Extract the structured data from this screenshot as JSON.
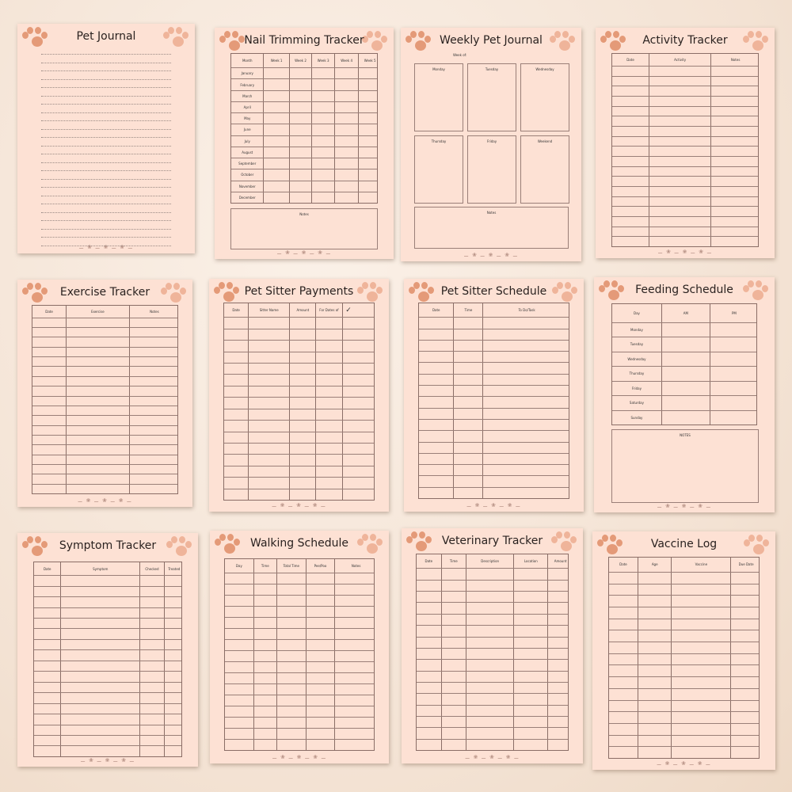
{
  "colors": {
    "page": "#fde1d4",
    "paw": "#e49a78",
    "grid": "#8a6d66"
  },
  "footer_icons": "bone-paw-bone-paw-bone",
  "pages": [
    {
      "title": "Pet Journal",
      "type": "lines"
    },
    {
      "title": "Nail Trimming Tracker",
      "type": "table",
      "columns": [
        "Month",
        "Week 1",
        "Week 2",
        "Week 3",
        "Week 4",
        "Week 5"
      ],
      "row_labels": [
        "January",
        "February",
        "March",
        "April",
        "May",
        "June",
        "July",
        "August",
        "September",
        "October",
        "November",
        "December"
      ],
      "notes": "Notes"
    },
    {
      "title": "Weekly Pet Journal",
      "type": "weekly",
      "week_of": "Week of:",
      "days": [
        "Monday",
        "Tuesday",
        "Wednesday",
        "Thursday",
        "Friday",
        "Weekend"
      ],
      "notes": "Notes"
    },
    {
      "title": "Activity Tracker",
      "type": "table",
      "columns": [
        "Date",
        "Activity",
        "Notes"
      ]
    },
    {
      "title": "Exercise Tracker",
      "type": "table",
      "columns": [
        "Date",
        "Exercise",
        "Notes"
      ]
    },
    {
      "title": "Pet Sitter Payments",
      "type": "table",
      "columns": [
        "Date",
        "Sitter Name",
        "Amount",
        "For Dates of",
        "✓"
      ]
    },
    {
      "title": "Pet Sitter Schedule",
      "type": "table",
      "columns": [
        "Date",
        "Time",
        "To Do/Task"
      ]
    },
    {
      "title": "Feeding Schedule",
      "type": "table",
      "columns": [
        "Day",
        "AM",
        "PM"
      ],
      "row_labels": [
        "Monday",
        "Tuesday",
        "Wednesday",
        "Thursday",
        "Friday",
        "Saturday",
        "Sunday"
      ],
      "notes": "NOTES"
    },
    {
      "title": "Symptom Tracker",
      "type": "table",
      "columns": [
        "Date",
        "Symptom",
        "Checked",
        "Treated"
      ]
    },
    {
      "title": "Walking Schedule",
      "type": "table",
      "columns": [
        "Day",
        "Time",
        "Total Time",
        "Pee/Poo",
        "Notes"
      ]
    },
    {
      "title": "Veterinary Tracker",
      "type": "table",
      "columns": [
        "Date",
        "Time",
        "Description",
        "Location",
        "Amount"
      ]
    },
    {
      "title": "Vaccine Log",
      "type": "table",
      "columns": [
        "Date",
        "Age",
        "Vaccine",
        "Due Date"
      ]
    }
  ]
}
